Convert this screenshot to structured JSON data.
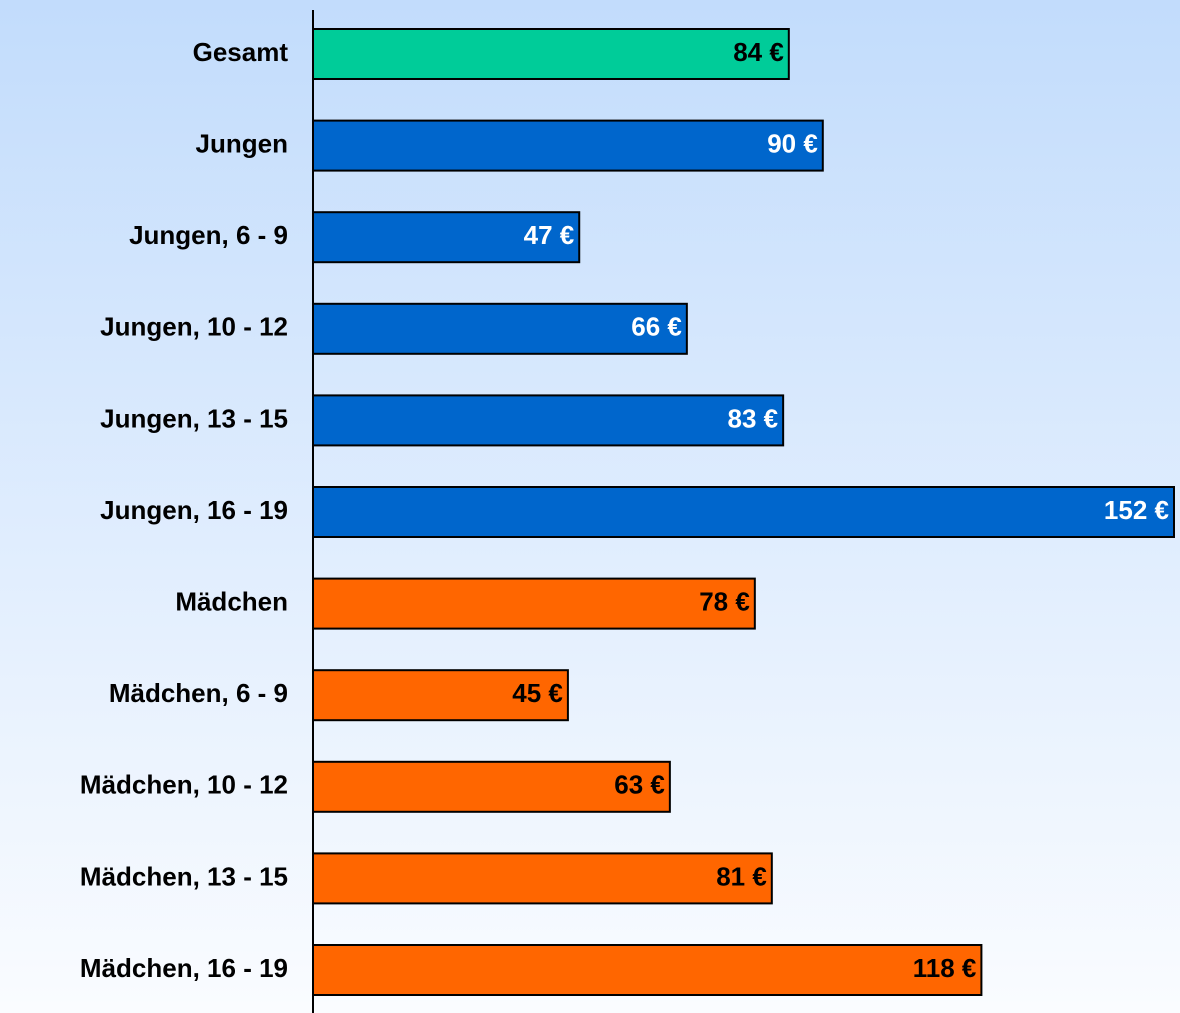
{
  "chart_data": {
    "type": "bar",
    "orientation": "horizontal",
    "categories": [
      "Gesamt",
      "Jungen",
      "Jungen, 6 - 9",
      "Jungen, 10 - 12",
      "Jungen, 13 - 15",
      "Jungen, 16 - 19",
      "Mädchen",
      "Mädchen, 6 - 9",
      "Mädchen, 10 - 12",
      "Mädchen, 13 - 15",
      "Mädchen, 16 - 19"
    ],
    "values": [
      84,
      90,
      47,
      66,
      83,
      152,
      78,
      45,
      63,
      81,
      118
    ],
    "value_labels": [
      "84 €",
      "90 €",
      "47 €",
      "66 €",
      "83 €",
      "152 €",
      "78 €",
      "45 €",
      "63 €",
      "81 €",
      "118 €"
    ],
    "colors": [
      "#00cc99",
      "#0066cc",
      "#0066cc",
      "#0066cc",
      "#0066cc",
      "#0066cc",
      "#ff6600",
      "#ff6600",
      "#ff6600",
      "#ff6600",
      "#ff6600"
    ],
    "value_label_colors": [
      "#000000",
      "#ffffff",
      "#ffffff",
      "#ffffff",
      "#ffffff",
      "#ffffff",
      "#000000",
      "#000000",
      "#000000",
      "#000000",
      "#000000"
    ]
  }
}
